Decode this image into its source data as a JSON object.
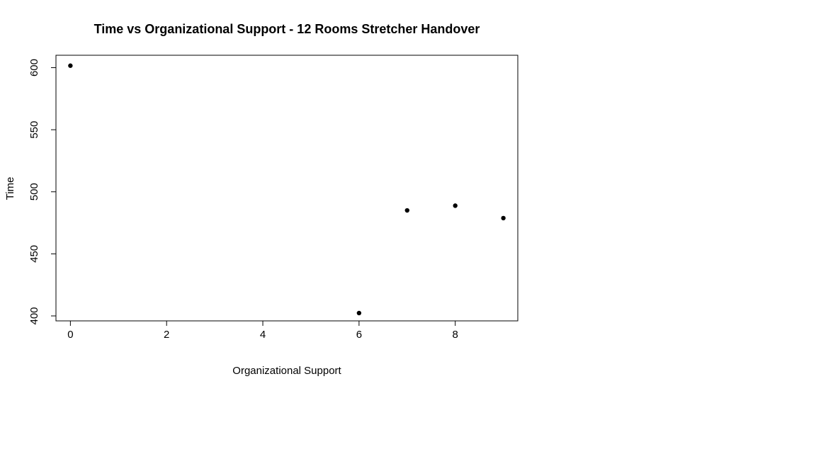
{
  "chart_data": {
    "type": "scatter",
    "title": "Time vs Organizational Support - 12 Rooms Stretcher Handover",
    "xlabel": "Organizational Support",
    "ylabel": "Time",
    "xlim": [
      -0.3,
      9.3
    ],
    "ylim": [
      396,
      610
    ],
    "x_ticks": [
      0,
      2,
      4,
      6,
      8
    ],
    "y_ticks": [
      400,
      450,
      500,
      550,
      600
    ],
    "grid": false,
    "points": [
      {
        "x": 0,
        "y": 601.6
      },
      {
        "x": 6,
        "y": 402.3
      },
      {
        "x": 7,
        "y": 485.0
      },
      {
        "x": 8,
        "y": 488.8
      },
      {
        "x": 9,
        "y": 478.8
      }
    ],
    "point_color": "#000000"
  }
}
